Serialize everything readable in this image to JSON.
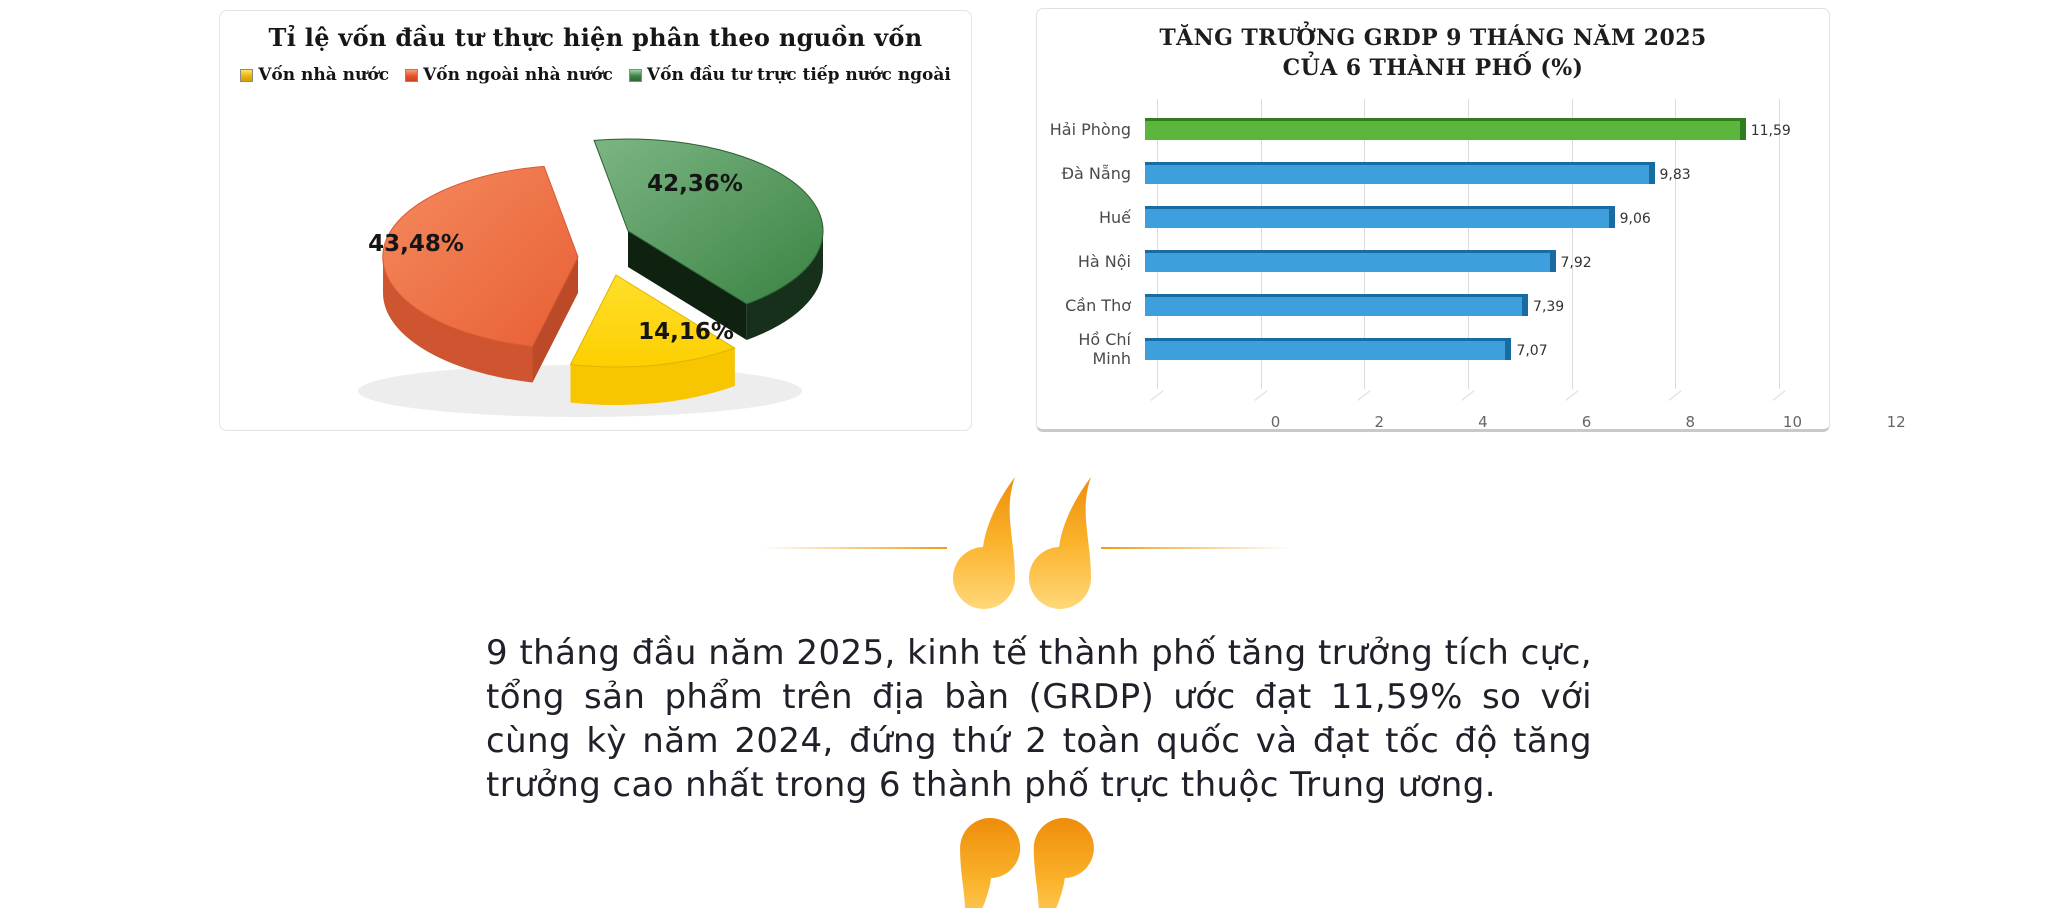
{
  "pie_panel": {
    "title": "Tỉ lệ vốn đầu tư thực hiện phân theo nguồn vốn",
    "legend": [
      {
        "label": "Vốn nhà nước",
        "color": "#E9B50B"
      },
      {
        "label": "Vốn ngoài nhà nước",
        "color": "#E4512B"
      },
      {
        "label": "Vốn đầu tư trực tiếp nước ngoài",
        "color": "#3D8045"
      }
    ],
    "slice_labels": {
      "state": "14,16%",
      "nonstate": "43,48%",
      "fdi": "42,36%"
    }
  },
  "bar_panel": {
    "title_line1": "TĂNG TRƯỞNG GRDP 9 THÁNG NĂM 2025",
    "title_line2": "CỦA 6 THÀNH PHỐ (%)",
    "rows": [
      {
        "label": "Hải Phòng",
        "value_label": "11,59",
        "color": "#5CB63E",
        "color_dark": "#2F7D1C"
      },
      {
        "label": "Đà Nẵng",
        "value_label": "9,83",
        "color": "#3DA0DD",
        "color_dark": "#1A6BA1"
      },
      {
        "label": "Huế",
        "value_label": "9,06",
        "color": "#3DA0DD",
        "color_dark": "#1A6BA1"
      },
      {
        "label": "Hà Nội",
        "value_label": "7,92",
        "color": "#3DA0DD",
        "color_dark": "#1A6BA1"
      },
      {
        "label": "Cần Thơ",
        "value_label": "7,39",
        "color": "#3DA0DD",
        "color_dark": "#1A6BA1"
      },
      {
        "label": "Hồ Chí Minh",
        "value_label": "7,07",
        "color": "#3DA0DD",
        "color_dark": "#1A6BA1"
      }
    ],
    "ticks": [
      "0",
      "2",
      "4",
      "6",
      "8",
      "10",
      "12"
    ]
  },
  "quote": {
    "text": "9 tháng đầu năm 2025, kinh tế thành phố tăng trưởng tích cực, tổng sản phẩm trên địa bàn (GRDP) ước đạt 11,59% so với cùng kỳ năm 2024, đứng thứ 2 toàn quốc và đạt tốc độ tăng trưởng cao nhất trong 6 thành phố trực thuộc Trung ương.",
    "accent_color": "#F5A623"
  },
  "chart_data": [
    {
      "type": "pie",
      "style": "3d-exploded",
      "title": "Tỉ lệ vốn đầu tư thực hiện phân theo nguồn vốn",
      "labels": [
        "Vốn nhà nước",
        "Vốn ngoài nhà nước",
        "Vốn đầu tư trực tiếp nước ngoài"
      ],
      "values": [
        14.16,
        43.48,
        42.36
      ],
      "unit": "%",
      "colors": [
        "#FFD400",
        "#ED6A3C",
        "#3F8A4C"
      ],
      "legend_position": "top"
    },
    {
      "type": "bar",
      "orientation": "horizontal",
      "title": "TĂNG TRƯỞNG GRDP 9 THÁNG NĂM 2025 CỦA 6 THÀNH PHỐ (%)",
      "categories": [
        "Hải Phòng",
        "Đà Nẵng",
        "Huế",
        "Hà Nội",
        "Cần Thơ",
        "Hồ Chí Minh"
      ],
      "values": [
        11.59,
        9.83,
        9.06,
        7.92,
        7.39,
        7.07
      ],
      "xlim": [
        0,
        12
      ],
      "xticks": [
        0,
        2,
        4,
        6,
        8,
        10,
        12
      ],
      "grid": true,
      "bar_colors": [
        "#5CB63E",
        "#3DA0DD",
        "#3DA0DD",
        "#3DA0DD",
        "#3DA0DD",
        "#3DA0DD"
      ],
      "highlight_category": "Hải Phòng"
    }
  ]
}
